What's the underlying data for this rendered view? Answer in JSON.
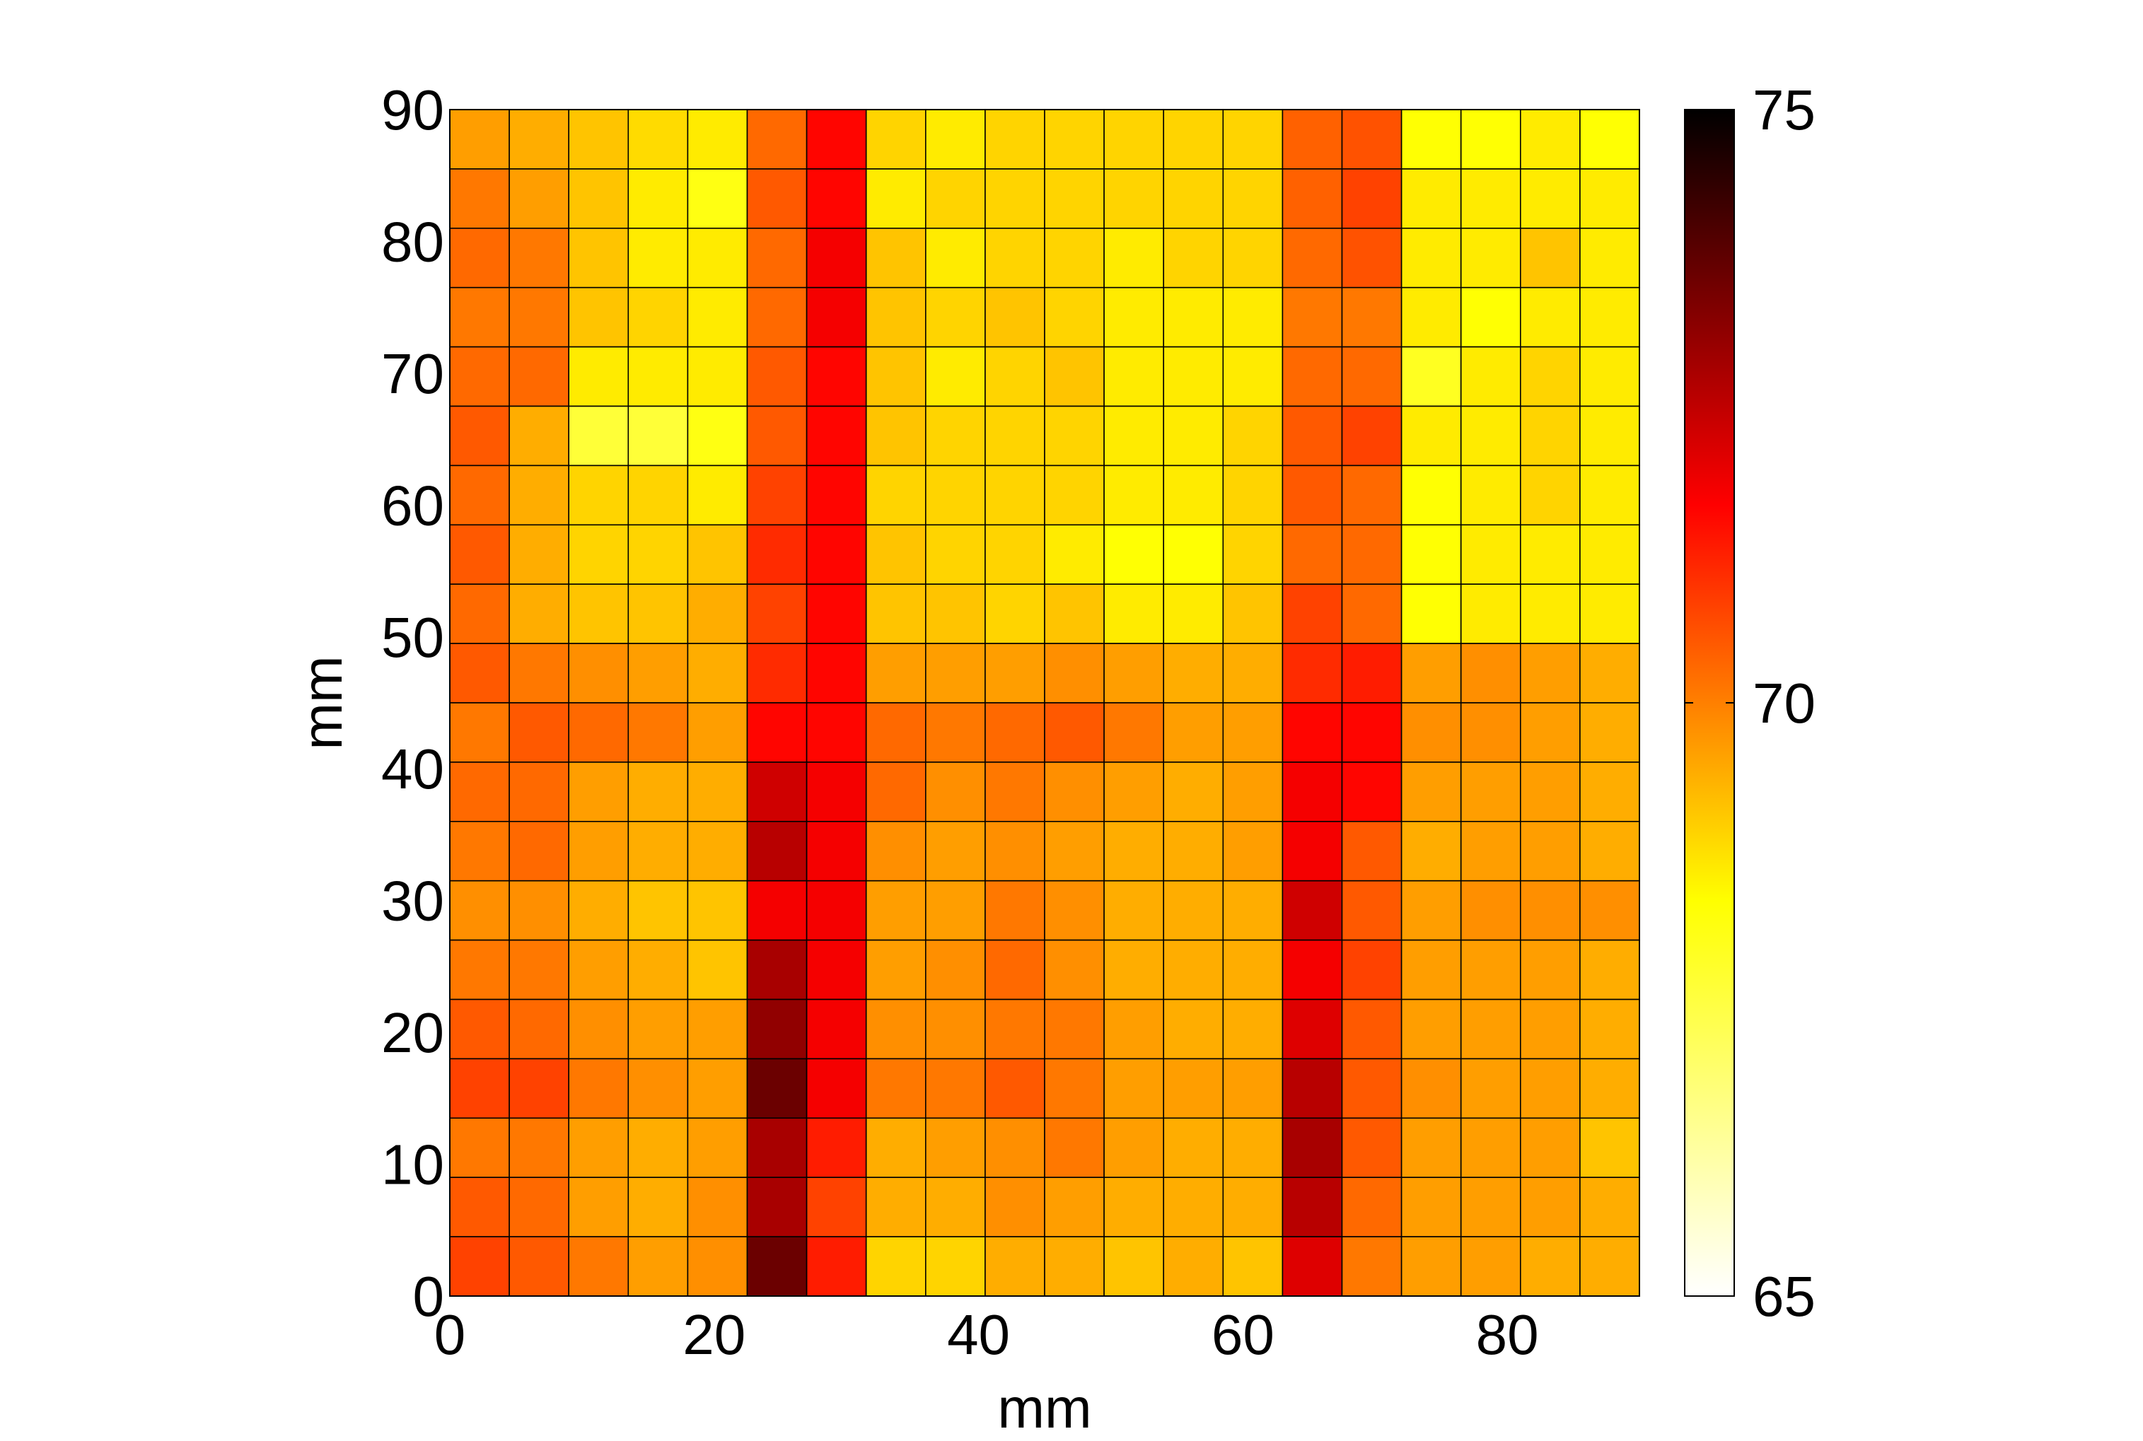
{
  "chart_data": {
    "type": "heatmap",
    "title": "",
    "xlabel": "mm",
    "ylabel": "mm",
    "xlim": [
      0,
      90
    ],
    "ylim": [
      0,
      90
    ],
    "x_ticks": [
      0,
      20,
      40,
      60,
      80
    ],
    "x_tick_labels": [
      "0",
      "20",
      "40",
      "60",
      "80"
    ],
    "y_ticks": [
      0,
      10,
      20,
      30,
      40,
      50,
      60,
      70,
      80,
      90
    ],
    "y_tick_labels": [
      "0",
      "10",
      "20",
      "30",
      "40",
      "50",
      "60",
      "70",
      "80",
      "90"
    ],
    "grid": false,
    "colormap": "hot (reversed)",
    "colorbar": {
      "min": 65,
      "max": 75,
      "ticks": [
        65,
        70,
        75
      ],
      "tick_labels": [
        "65",
        "70",
        "75"
      ]
    },
    "cell_size_mm": 4.5,
    "rows_order": "top_to_bottom",
    "values": [
      [
        69.6,
        69.4,
        69.1,
        68.8,
        68.6,
        70.3,
        71.6,
        68.9,
        68.6,
        68.9,
        68.9,
        68.9,
        68.9,
        68.9,
        70.4,
        70.6,
        68.3,
        68.3,
        68.6,
        68.3
      ],
      [
        70.1,
        69.6,
        69.1,
        68.6,
        68.1,
        70.5,
        71.6,
        68.6,
        68.9,
        68.9,
        68.9,
        68.9,
        68.9,
        68.9,
        70.4,
        70.8,
        68.6,
        68.6,
        68.6,
        68.6
      ],
      [
        70.3,
        70.1,
        69.1,
        68.6,
        68.6,
        70.3,
        71.8,
        69.1,
        68.6,
        68.9,
        68.9,
        68.6,
        68.9,
        68.9,
        70.3,
        70.6,
        68.6,
        68.6,
        69.1,
        68.6
      ],
      [
        70.1,
        70.1,
        69.1,
        68.9,
        68.6,
        70.3,
        71.8,
        69.1,
        68.9,
        69.1,
        68.9,
        68.6,
        68.6,
        68.6,
        70.1,
        70.1,
        68.6,
        68.3,
        68.6,
        68.6
      ],
      [
        70.3,
        70.3,
        68.6,
        68.6,
        68.6,
        70.5,
        71.6,
        69.1,
        68.6,
        68.9,
        69.1,
        68.6,
        68.6,
        68.6,
        70.3,
        70.3,
        67.9,
        68.6,
        68.9,
        68.6
      ],
      [
        70.5,
        69.4,
        67.6,
        67.6,
        68.1,
        70.5,
        71.6,
        69.1,
        68.9,
        68.9,
        68.9,
        68.6,
        68.6,
        68.9,
        70.5,
        70.8,
        68.6,
        68.6,
        68.9,
        68.6
      ],
      [
        70.3,
        69.4,
        68.9,
        68.9,
        68.6,
        70.8,
        71.6,
        68.9,
        68.9,
        68.9,
        68.9,
        68.6,
        68.6,
        68.9,
        70.5,
        70.3,
        68.3,
        68.6,
        68.9,
        68.6
      ],
      [
        70.5,
        69.4,
        68.9,
        68.9,
        69.1,
        71.1,
        71.6,
        69.1,
        68.9,
        68.9,
        68.6,
        68.3,
        68.3,
        68.9,
        70.3,
        70.3,
        68.3,
        68.6,
        68.6,
        68.6
      ],
      [
        70.3,
        69.4,
        69.1,
        69.1,
        69.4,
        70.8,
        71.6,
        69.1,
        69.1,
        68.9,
        69.1,
        68.6,
        68.6,
        69.1,
        70.8,
        70.3,
        68.3,
        68.6,
        68.6,
        68.6
      ],
      [
        70.5,
        70.1,
        69.8,
        69.6,
        69.4,
        71.1,
        71.6,
        69.6,
        69.6,
        69.6,
        69.8,
        69.6,
        69.4,
        69.4,
        71.1,
        71.3,
        69.6,
        69.8,
        69.6,
        69.4
      ],
      [
        70.1,
        70.5,
        70.3,
        70.1,
        69.6,
        71.6,
        71.6,
        70.3,
        70.1,
        70.3,
        70.5,
        70.1,
        69.6,
        69.6,
        71.6,
        71.6,
        69.8,
        69.8,
        69.6,
        69.4
      ],
      [
        70.3,
        70.3,
        69.6,
        69.4,
        69.4,
        72.3,
        71.8,
        70.3,
        69.8,
        70.1,
        69.8,
        69.6,
        69.4,
        69.6,
        71.8,
        71.6,
        69.6,
        69.6,
        69.6,
        69.4
      ],
      [
        70.1,
        70.3,
        69.6,
        69.4,
        69.4,
        72.6,
        71.8,
        69.8,
        69.6,
        69.8,
        69.6,
        69.4,
        69.4,
        69.6,
        71.8,
        70.5,
        69.4,
        69.6,
        69.6,
        69.4
      ],
      [
        69.8,
        69.8,
        69.4,
        69.1,
        69.1,
        71.8,
        71.8,
        69.6,
        69.6,
        70.1,
        69.8,
        69.4,
        69.4,
        69.4,
        72.3,
        70.5,
        69.6,
        69.8,
        69.8,
        69.8
      ],
      [
        70.1,
        70.1,
        69.6,
        69.4,
        69.1,
        72.8,
        71.8,
        69.6,
        69.8,
        70.3,
        69.8,
        69.4,
        69.4,
        69.4,
        71.8,
        70.8,
        69.6,
        69.6,
        69.6,
        69.4
      ],
      [
        70.5,
        70.3,
        69.8,
        69.6,
        69.6,
        73.1,
        71.8,
        69.8,
        69.8,
        70.1,
        70.1,
        69.6,
        69.4,
        69.4,
        72.1,
        70.5,
        69.6,
        69.6,
        69.6,
        69.4
      ],
      [
        70.8,
        70.8,
        70.1,
        69.8,
        69.6,
        73.6,
        71.8,
        70.1,
        70.1,
        70.5,
        70.1,
        69.6,
        69.6,
        69.6,
        72.6,
        70.5,
        69.8,
        69.6,
        69.6,
        69.4
      ],
      [
        70.1,
        70.1,
        69.6,
        69.4,
        69.6,
        72.8,
        71.3,
        69.4,
        69.6,
        69.8,
        70.1,
        69.6,
        69.4,
        69.4,
        72.8,
        70.5,
        69.6,
        69.6,
        69.6,
        69.1
      ],
      [
        70.5,
        70.3,
        69.6,
        69.4,
        69.8,
        72.8,
        70.8,
        69.4,
        69.4,
        69.8,
        69.6,
        69.4,
        69.4,
        69.4,
        72.6,
        70.3,
        69.6,
        69.6,
        69.6,
        69.4
      ],
      [
        70.8,
        70.5,
        70.1,
        69.6,
        69.8,
        73.6,
        71.3,
        68.9,
        68.9,
        69.4,
        69.4,
        69.1,
        69.4,
        69.1,
        72.1,
        70.1,
        69.6,
        69.6,
        69.4,
        69.4
      ]
    ]
  }
}
